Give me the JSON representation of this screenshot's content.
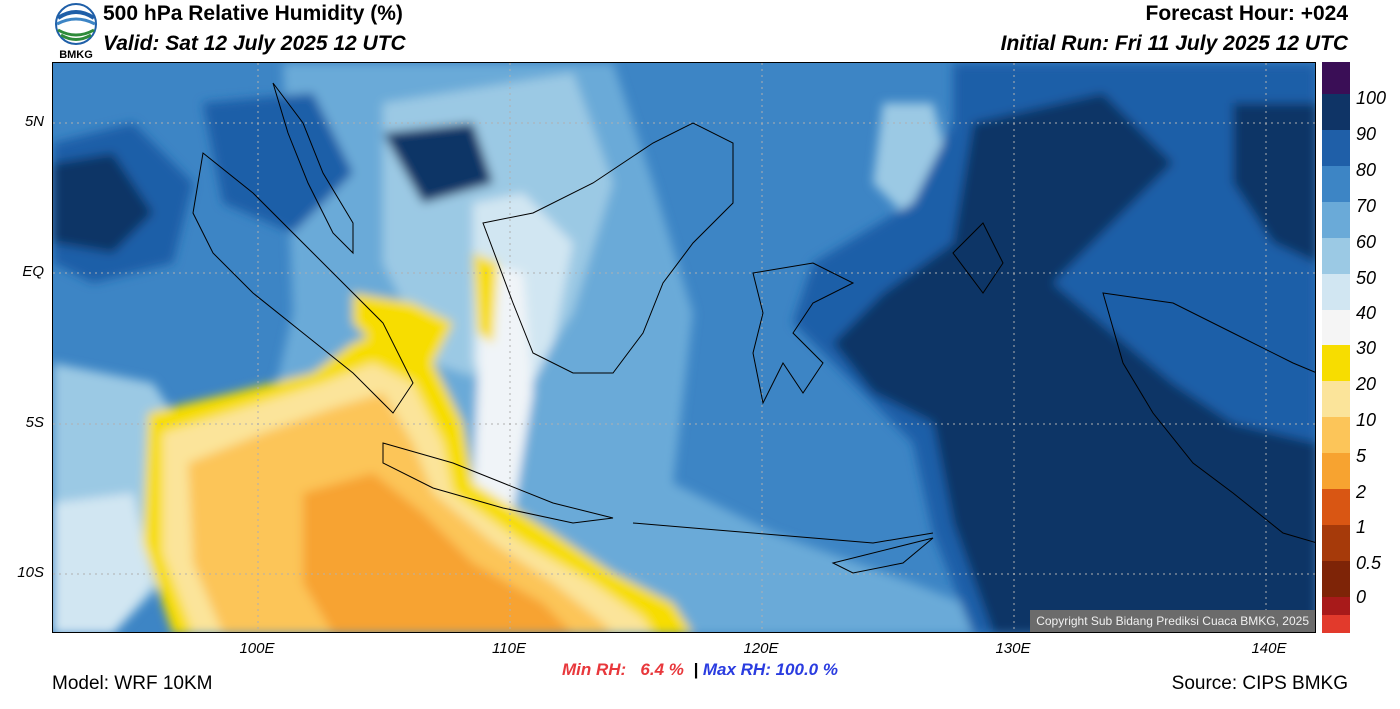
{
  "header": {
    "title": "500 hPa Relative Humidity (%)",
    "valid": "Valid: Sat 12 July 2025 12 UTC",
    "forecast_hour": "Forecast Hour: +024",
    "initial_run": "Initial Run: Fri 11 July 2025 12 UTC",
    "logo_text": "BMKG"
  },
  "map": {
    "copyright": "Copyright Sub Bidang Prediksi Cuaca BMKG, 2025",
    "lat_labels": [
      "5N",
      "EQ",
      "5S",
      "10S"
    ],
    "lon_labels": [
      "100E",
      "110E",
      "120E",
      "130E",
      "140E"
    ]
  },
  "stats": {
    "min_label": "Min RH:",
    "min_value": "6.4 %",
    "separator": "|",
    "max_label": "Max RH: 100.0 %"
  },
  "footer": {
    "model": "Model: WRF 10KM",
    "source": "Source: CIPS BMKG"
  },
  "colorbar": {
    "labels": [
      "100",
      "90",
      "80",
      "70",
      "60",
      "50",
      "40",
      "30",
      "20",
      "10",
      "5",
      "2",
      "1",
      "0.5",
      "0"
    ],
    "colors": [
      "#3a0e56",
      "#0f3466",
      "#1f5fa8",
      "#3d85c5",
      "#6aaad8",
      "#9bc9e4",
      "#d1e6f2",
      "#f5f5f5",
      "#f7dd00",
      "#fbe49a",
      "#fcc559",
      "#f7a330",
      "#d95613",
      "#a63a0a",
      "#7e2407",
      "#58190a",
      "#a81a1a",
      "#e23a2c"
    ]
  },
  "colors": {
    "min_color": "#e8383c",
    "max_color": "#2a3ce0"
  }
}
